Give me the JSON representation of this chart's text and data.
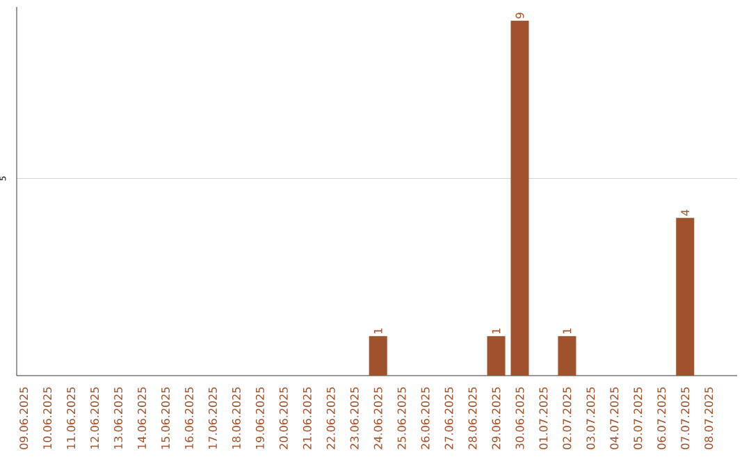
{
  "chart_data": {
    "type": "bar",
    "categories": [
      "09.06.2025",
      "10.06.2025",
      "11.06.2025",
      "12.06.2025",
      "13.06.2025",
      "14.06.2025",
      "15.06.2025",
      "16.06.2025",
      "17.06.2025",
      "18.06.2025",
      "19.06.2025",
      "20.06.2025",
      "21.06.2025",
      "22.06.2025",
      "23.06.2025",
      "24.06.2025",
      "25.06.2025",
      "26.06.2025",
      "27.06.2025",
      "28.06.2025",
      "29.06.2025",
      "30.06.2025",
      "01.07.2025",
      "02.07.2025",
      "03.07.2025",
      "04.07.2025",
      "05.07.2025",
      "06.07.2025",
      "07.07.2025",
      "08.07.2025"
    ],
    "values": [
      null,
      null,
      null,
      null,
      null,
      null,
      null,
      null,
      null,
      null,
      null,
      null,
      null,
      null,
      null,
      1,
      null,
      null,
      null,
      null,
      1,
      9,
      null,
      1,
      null,
      null,
      null,
      null,
      4,
      null
    ],
    "data_labels": true,
    "color": "#a0522d",
    "ylim": [
      0,
      9.35
    ],
    "yticks": [
      5
    ],
    "grid": "y"
  }
}
